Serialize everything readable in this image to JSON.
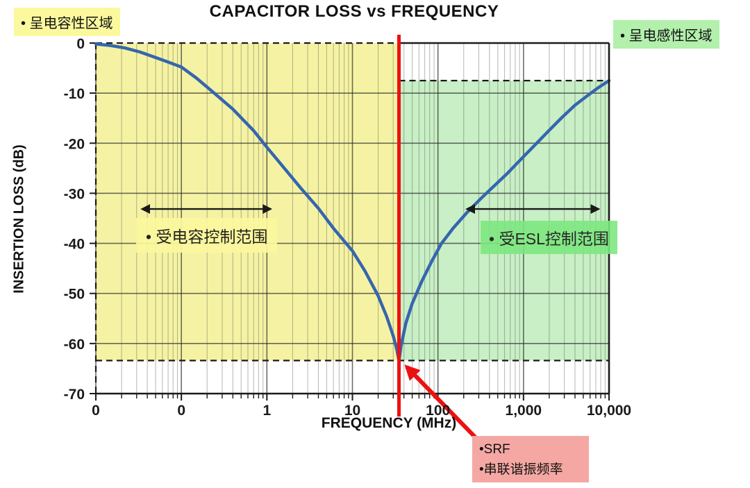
{
  "title": "CAPACITOR LOSS vs FREQUENCY",
  "annotations": {
    "capacitive_region": "• 呈电容性区域",
    "inductive_region": "• 呈电感性区域",
    "cap_controlled_range": "• 受电容控制范围",
    "esl_controlled_range": "• 受ESL控制范围",
    "srf_line1": "•SRF",
    "srf_line2": "•串联谐振频率"
  },
  "colors": {
    "capacitive_fill": "#F5F3A3",
    "inductive_fill": "#C8EFC5",
    "label_yellow": "#FBF89E",
    "label_green_light": "#B2F0AC",
    "label_green_strong": "#7CE87F",
    "srf_box_pink": "#F5A8A3",
    "curve_blue": "#3566AE",
    "srf_red": "#EC1111",
    "grid_minor": "rgba(80,80,80,0.38)",
    "grid_major": "rgba(45,45,45,0.70)",
    "axis_black": "#1a1a1a"
  },
  "chart_data": {
    "type": "line",
    "title": "CAPACITOR LOSS vs FREQUENCY",
    "xlabel": "FREQUENCY (MHz)",
    "ylabel": "INSERTION LOSS (dB)",
    "x_scale": "log",
    "x_range_mhz": [
      0.01,
      10000
    ],
    "ylim": [
      -70,
      0
    ],
    "grid": "log minor + major verticals, 10 dB horizontals",
    "legend_position": "none",
    "x_tick_values_mhz": [
      0.01,
      0.1,
      1,
      10,
      100,
      1000,
      10000
    ],
    "x_tick_labels": [
      "0",
      "0",
      "1",
      "10",
      "100",
      "1,000",
      "10,000"
    ],
    "y_tick_values": [
      0,
      -10,
      -20,
      -30,
      -40,
      -50,
      -60,
      -70
    ],
    "y_tick_labels": [
      "0",
      "-10",
      "-20",
      "-30",
      "-40",
      "-50",
      "-60",
      "-70"
    ],
    "srf_mhz": 35,
    "min_loss_db": -63.4,
    "right_end_loss_db": -7.5,
    "regions": [
      {
        "name": "capacitive (呈电容性区域)",
        "from_mhz": 0.01,
        "to_mhz": 35,
        "top_db": 0,
        "bottom_db": -63.4
      },
      {
        "name": "inductive (呈电感性区域)",
        "from_mhz": 35,
        "to_mhz": 10000,
        "top_db": -7.5,
        "bottom_db": -63.4
      }
    ],
    "dashed_guides": [
      {
        "axis": "y",
        "db": 0,
        "from_mhz": 0.01,
        "to_mhz": 35
      },
      {
        "axis": "y",
        "db": -7.5,
        "from_mhz": 35,
        "to_mhz": 10000
      },
      {
        "axis": "y",
        "db": -63.4,
        "from_mhz": 0.01,
        "to_mhz": 10000
      }
    ],
    "series": [
      {
        "name": "insertion_loss",
        "points": [
          [
            0.01,
            -0.2
          ],
          [
            0.015,
            -0.5
          ],
          [
            0.022,
            -1.0
          ],
          [
            0.033,
            -1.8
          ],
          [
            0.05,
            -2.9
          ],
          [
            0.07,
            -3.8
          ],
          [
            0.1,
            -4.8
          ],
          [
            0.15,
            -7.0
          ],
          [
            0.25,
            -10.2
          ],
          [
            0.4,
            -13.2
          ],
          [
            0.7,
            -17.5
          ],
          [
            1,
            -20.8
          ],
          [
            1.6,
            -25
          ],
          [
            2.5,
            -29
          ],
          [
            4,
            -33
          ],
          [
            6,
            -37
          ],
          [
            10,
            -41.5
          ],
          [
            14,
            -45.5
          ],
          [
            20,
            -50.5
          ],
          [
            25,
            -54.5
          ],
          [
            30,
            -58.5
          ],
          [
            33,
            -61.2
          ],
          [
            35,
            -63.4
          ],
          [
            37,
            -60.5
          ],
          [
            42,
            -56
          ],
          [
            50,
            -52
          ],
          [
            65,
            -47.5
          ],
          [
            85,
            -43.5
          ],
          [
            110,
            -40
          ],
          [
            150,
            -37
          ],
          [
            220,
            -33.8
          ],
          [
            320,
            -31
          ],
          [
            450,
            -28.6
          ],
          [
            650,
            -26
          ],
          [
            900,
            -23.5
          ],
          [
            1300,
            -20.7
          ],
          [
            1900,
            -17.8
          ],
          [
            2800,
            -14.9
          ],
          [
            4000,
            -12.4
          ],
          [
            5500,
            -10.6
          ],
          [
            7500,
            -8.9
          ],
          [
            10000,
            -7.5
          ]
        ]
      }
    ],
    "range_arrows": [
      {
        "label": "受电容控制范围",
        "from_mhz": 0.035,
        "to_mhz": 1.1,
        "at_db": -33
      },
      {
        "label": "受ESL控制范围",
        "from_mhz": 220,
        "to_mhz": 7500,
        "at_db": -33
      }
    ]
  }
}
